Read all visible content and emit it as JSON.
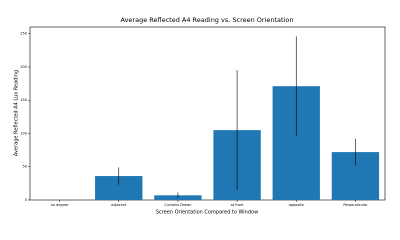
{
  "chart_data": {
    "type": "bar",
    "title": "Average Reflected A4 Reading vs. Screen Orientation",
    "x_label": "Screen Orientation Compared to Window",
    "y_label": "Average Reflected A4 Lux Reading",
    "categories": [
      "no degree",
      "adjacent",
      "Curtains Drawn",
      "at front",
      "opposite",
      "Perpendicular"
    ],
    "values": [
      0,
      36,
      7,
      105,
      171,
      72
    ],
    "errors": [
      0,
      13,
      4,
      90,
      75,
      20
    ],
    "color": "#1f77b4",
    "ylim": [
      0,
      260
    ],
    "yticks": [
      0,
      50,
      100,
      150,
      200,
      250
    ]
  }
}
